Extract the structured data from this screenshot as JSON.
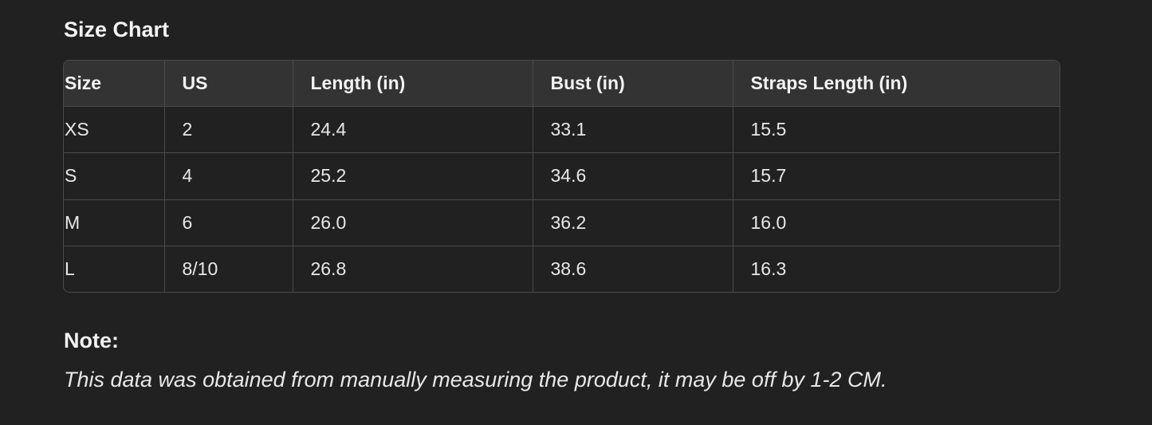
{
  "title": "Size Chart",
  "table": {
    "headers": [
      "Size",
      "US",
      "Length (in)",
      "Bust (in)",
      "Straps Length (in)"
    ],
    "rows": [
      [
        "XS",
        "2",
        "24.4",
        "33.1",
        "15.5"
      ],
      [
        "S",
        "4",
        "25.2",
        "34.6",
        "15.7"
      ],
      [
        "M",
        "6",
        "26.0",
        "36.2",
        "16.0"
      ],
      [
        "L",
        "8/10",
        "26.8",
        "38.6",
        "16.3"
      ]
    ]
  },
  "note": {
    "label": "Note:",
    "text": "This data was obtained from manually measuring the product, it may be off by 1-2 CM."
  }
}
